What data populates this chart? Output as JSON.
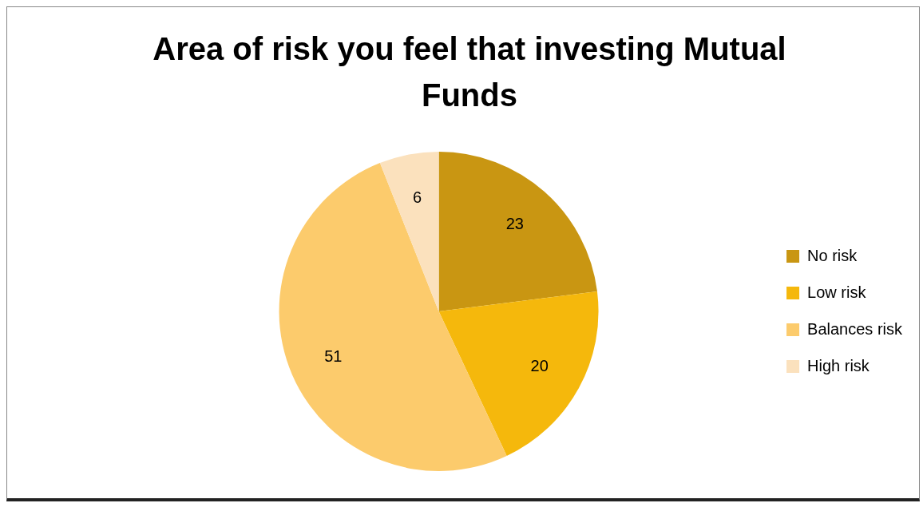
{
  "chart_data": {
    "type": "pie",
    "title": "Area of risk you feel that investing Mutual Funds",
    "categories": [
      "No risk",
      "Low risk",
      "Balances risk",
      "High risk"
    ],
    "values": [
      23,
      20,
      51,
      6
    ],
    "colors": [
      "#c99612",
      "#f5b80c",
      "#fccb6c",
      "#fbe1bd"
    ],
    "legend": "right",
    "data_labels": true
  }
}
